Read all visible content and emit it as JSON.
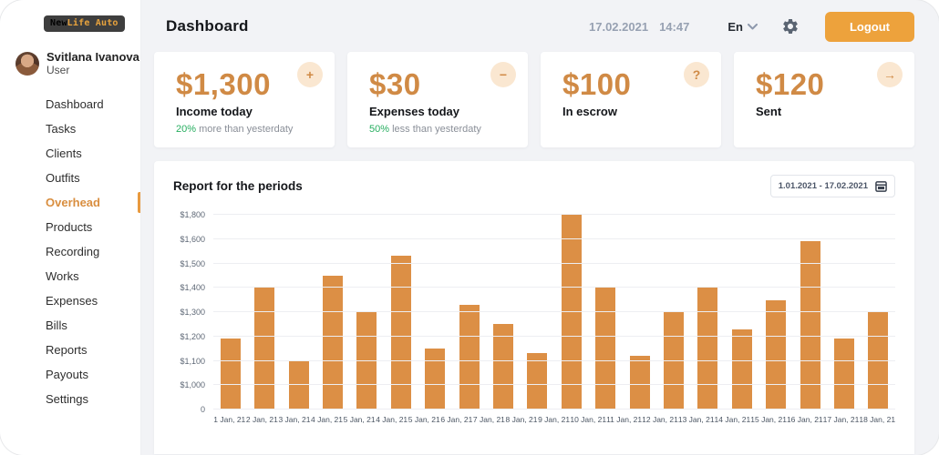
{
  "app": {
    "logo_part1": "New",
    "logo_part2": "Life Auto"
  },
  "user": {
    "name": "Svitlana Ivanova",
    "role": "User"
  },
  "sidebar": {
    "items": [
      {
        "label": "Dashboard",
        "active": false
      },
      {
        "label": "Tasks",
        "active": false
      },
      {
        "label": "Clients",
        "active": false
      },
      {
        "label": "Outfits",
        "active": false
      },
      {
        "label": "Overhead",
        "active": true
      },
      {
        "label": "Products",
        "active": false
      },
      {
        "label": "Recording",
        "active": false
      },
      {
        "label": "Works",
        "active": false
      },
      {
        "label": "Expenses",
        "active": false
      },
      {
        "label": "Bills",
        "active": false
      },
      {
        "label": "Reports",
        "active": false
      },
      {
        "label": "Payouts",
        "active": false
      },
      {
        "label": "Settings",
        "active": false
      }
    ]
  },
  "header": {
    "title": "Dashboard",
    "date": "17.02.2021",
    "time": "14:47",
    "language": "En",
    "logout_label": "Logout"
  },
  "stats": [
    {
      "value": "$1,300",
      "label": "Income today",
      "delta_value": "20%",
      "delta_text": " more than yesterdaty",
      "icon": "plus",
      "icon_glyph": "+"
    },
    {
      "value": "$30",
      "label": "Expenses today",
      "delta_value": "50%",
      "delta_text": " less than yesterdaty",
      "icon": "minus",
      "icon_glyph": "−"
    },
    {
      "value": "$100",
      "label": "In escrow",
      "icon": "question",
      "icon_glyph": "?"
    },
    {
      "value": "$120",
      "label": "Sent",
      "icon": "arrow-right",
      "icon_glyph": "→"
    }
  ],
  "report": {
    "title": "Report for the periods",
    "date_range": "1.01.2021 - 17.02.2021"
  },
  "chart_data": {
    "type": "bar",
    "title": "Report for the periods",
    "categories": [
      "1 Jan, 21",
      "2 Jan, 21",
      "3 Jan, 21",
      "4 Jan, 21",
      "5 Jan, 21",
      "4 Jan, 21",
      "5 Jan, 21",
      "6 Jan, 21",
      "7 Jan, 21",
      "8 Jan, 21",
      "9 Jan, 21",
      "10 Jan, 21",
      "11 Jan, 21",
      "12 Jan, 21",
      "13 Jan, 21",
      "14 Jan, 21",
      "15 Jan, 21",
      "16 Jan, 21",
      "17 Jan, 21",
      "18 Jan, 21"
    ],
    "values": [
      1190,
      1400,
      1100,
      1450,
      1300,
      1530,
      1150,
      1330,
      1250,
      1130,
      1800,
      1400,
      1120,
      1300,
      1400,
      1230,
      1350,
      1590,
      1190,
      1300
    ],
    "xlabel": "",
    "ylabel": "",
    "y_ticks": [
      0,
      1000,
      1100,
      1200,
      1300,
      1400,
      1500,
      1600,
      1800
    ],
    "y_tick_labels": [
      "0",
      "$1,000",
      "$1,100",
      "$1,200",
      "$1,300",
      "$1,400",
      "$1,500",
      "$1,600",
      "$1,800"
    ],
    "grid": true,
    "legend": false,
    "bar_color": "#DC8F45"
  },
  "colors": {
    "accent_orange": "#D08A45",
    "bar_orange": "#DC8F45",
    "button_orange": "#EDA23C",
    "positive_green": "#27AE60",
    "background": "#F2F3F6"
  }
}
